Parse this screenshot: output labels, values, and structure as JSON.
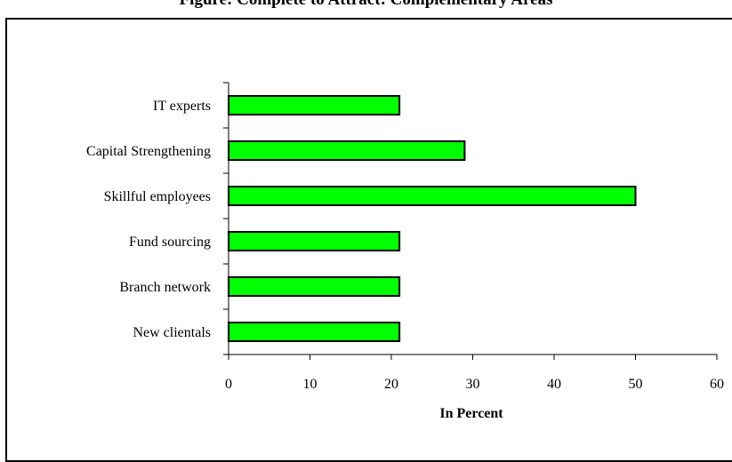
{
  "page": {
    "title": "Figure: Complete to Attract: Complementary Areas"
  },
  "chart_data": {
    "type": "bar",
    "orientation": "horizontal",
    "categories": [
      "IT experts",
      "Capital Strengthening",
      "Skillful employees",
      "Fund sourcing",
      "Branch network",
      "New clientals"
    ],
    "values": [
      21,
      29,
      50,
      21,
      21,
      21
    ],
    "xlabel": "In Percent",
    "ylabel": "",
    "xlim": [
      0,
      60
    ],
    "xticks": [
      0,
      10,
      20,
      30,
      40,
      50,
      60
    ],
    "grid": false,
    "legend": "none",
    "colors": {
      "bar_fill": "#00ff00",
      "bar_stroke": "#000000",
      "axis": "#000000"
    }
  }
}
